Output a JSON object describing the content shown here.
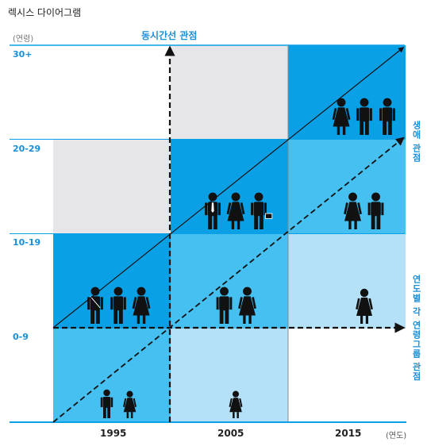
{
  "title": "렉시스 다이어그램",
  "labels": {
    "age_unit": "(연령)",
    "year_unit": "(연도)",
    "cohort_perspective": "동시간선 관점",
    "life_perspective": "생애 관점",
    "period_perspective": "연도별 각 연령그룹 관점"
  },
  "age_groups": [
    "0-9",
    "10-19",
    "20-29",
    "30+"
  ],
  "years": [
    "1995",
    "2005",
    "2015"
  ],
  "colors": {
    "light_gray": "#e6e6e8",
    "dark_blue": "#0aa0e6",
    "mid_blue": "#45c0f0",
    "pale_blue": "#b5e1f8",
    "white": "#ffffff",
    "accent_text": "#1a8fd6"
  },
  "grid_cells": [
    [
      "mid_blue",
      "pale_blue",
      "white"
    ],
    [
      "dark_blue",
      "mid_blue",
      "pale_blue"
    ],
    [
      "light_gray",
      "dark_blue",
      "mid_blue"
    ],
    [
      "white",
      "light_gray",
      "dark_blue"
    ]
  ],
  "figure_icons": [
    {
      "col": 0,
      "row": 0,
      "kinds": [
        "boy",
        "girl"
      ]
    },
    {
      "col": 1,
      "row": 0,
      "kinds": [
        "girl"
      ]
    },
    {
      "col": 0,
      "row": 1,
      "kinds": [
        "student-bag",
        "student-backpack",
        "woman"
      ]
    },
    {
      "col": 1,
      "row": 1,
      "kinds": [
        "man-phone",
        "woman"
      ]
    },
    {
      "col": 2,
      "row": 1,
      "kinds": [
        "girl-bag"
      ]
    },
    {
      "col": 1,
      "row": 2,
      "kinds": [
        "man-tie",
        "woman",
        "man-briefcase"
      ]
    },
    {
      "col": 2,
      "row": 2,
      "kinds": [
        "woman",
        "man-headset"
      ]
    },
    {
      "col": 2,
      "row": 3,
      "kinds": [
        "woman",
        "man",
        "man"
      ]
    }
  ]
}
